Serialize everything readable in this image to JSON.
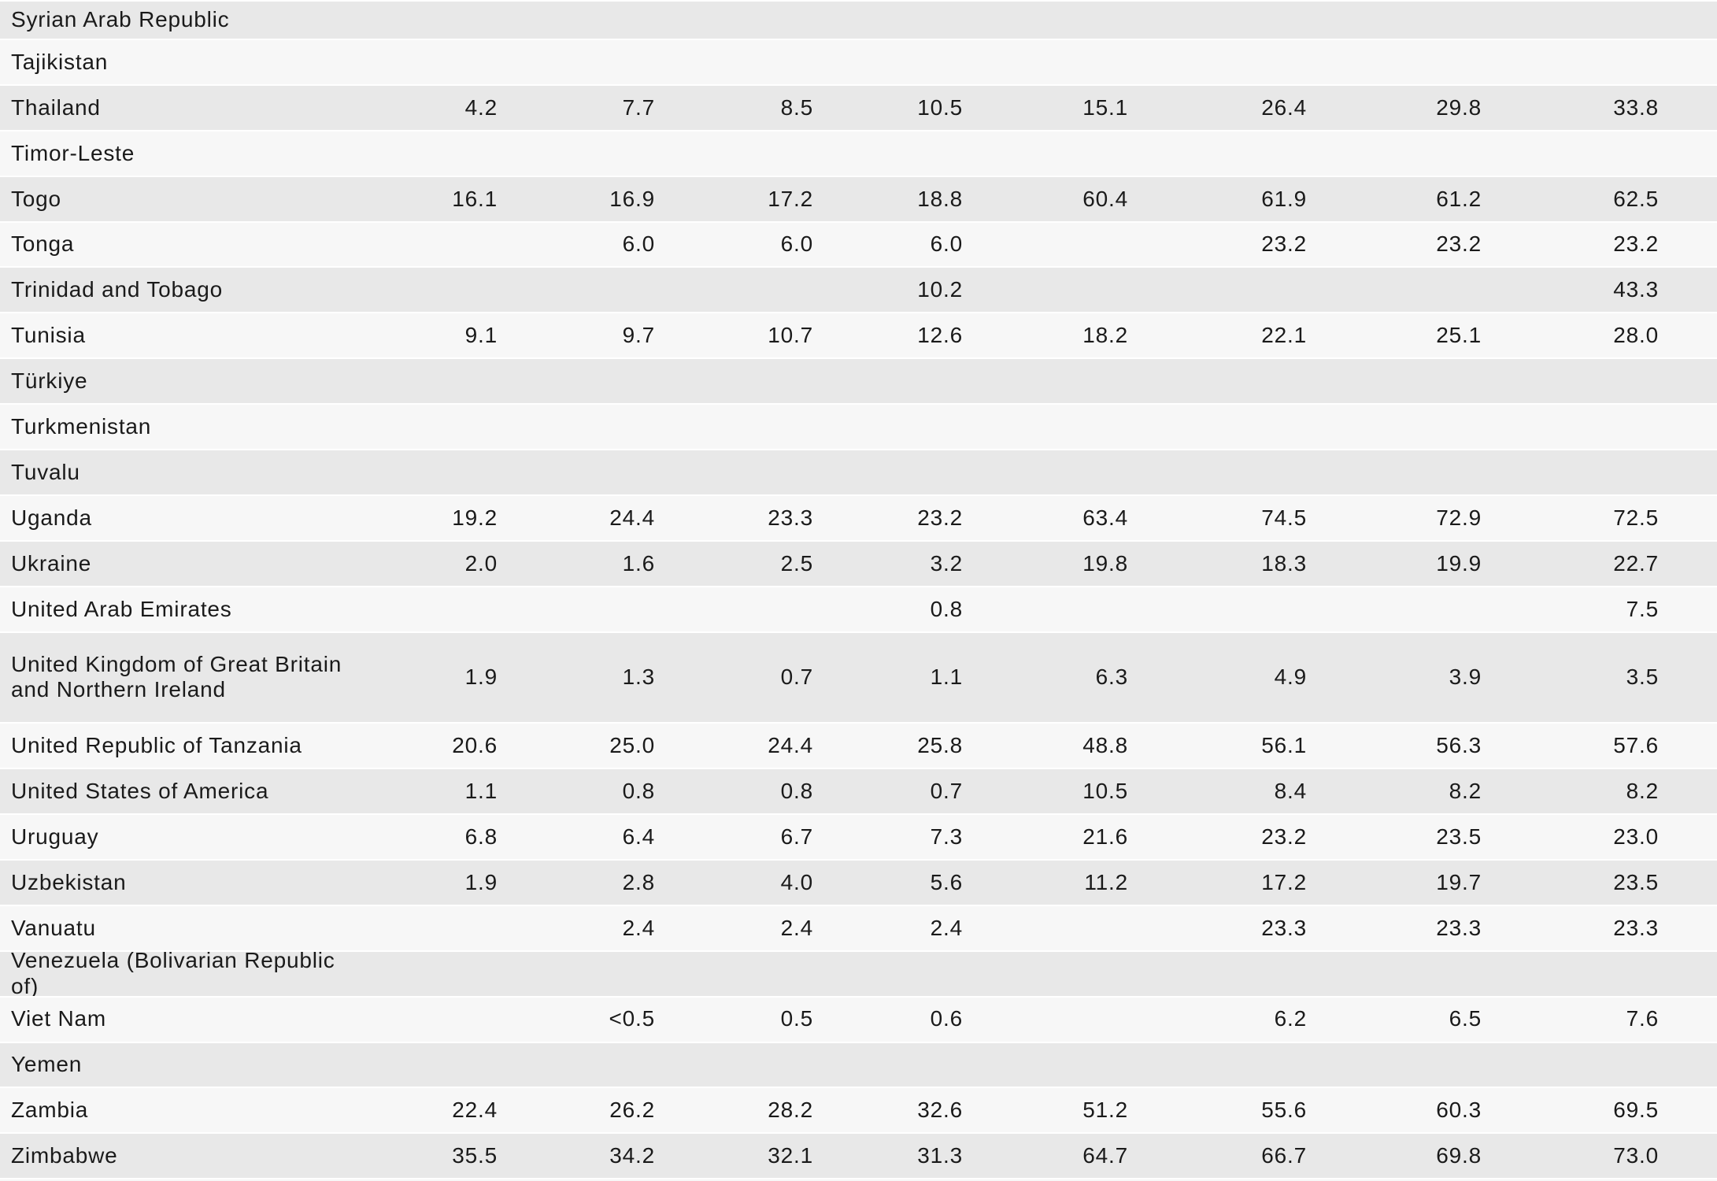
{
  "colors": {
    "row_gray": "#e8e8e8",
    "row_light": "#f7f7f7",
    "separator": "#ffffff",
    "text": "#1a1a1a"
  },
  "table": {
    "value_columns": 8,
    "rows": [
      {
        "country": "Syrian Arab Republic",
        "values": [
          "",
          "",
          "",
          "",
          "",
          "",
          "",
          ""
        ]
      },
      {
        "country": "Tajikistan",
        "values": [
          "",
          "",
          "",
          "",
          "",
          "",
          "",
          ""
        ]
      },
      {
        "country": "Thailand",
        "values": [
          "4.2",
          "7.7",
          "8.5",
          "10.5",
          "15.1",
          "26.4",
          "29.8",
          "33.8"
        ]
      },
      {
        "country": "Timor-Leste",
        "values": [
          "",
          "",
          "",
          "",
          "",
          "",
          "",
          ""
        ]
      },
      {
        "country": "Togo",
        "values": [
          "16.1",
          "16.9",
          "17.2",
          "18.8",
          "60.4",
          "61.9",
          "61.2",
          "62.5"
        ]
      },
      {
        "country": "Tonga",
        "values": [
          "",
          "6.0",
          "6.0",
          "6.0",
          "",
          "23.2",
          "23.2",
          "23.2"
        ]
      },
      {
        "country": "Trinidad and Tobago",
        "values": [
          "",
          "",
          "",
          "10.2",
          "",
          "",
          "",
          "43.3"
        ]
      },
      {
        "country": "Tunisia",
        "values": [
          "9.1",
          "9.7",
          "10.7",
          "12.6",
          "18.2",
          "22.1",
          "25.1",
          "28.0"
        ]
      },
      {
        "country": "Türkiye",
        "values": [
          "",
          "",
          "",
          "",
          "",
          "",
          "",
          ""
        ]
      },
      {
        "country": "Turkmenistan",
        "values": [
          "",
          "",
          "",
          "",
          "",
          "",
          "",
          ""
        ]
      },
      {
        "country": "Tuvalu",
        "values": [
          "",
          "",
          "",
          "",
          "",
          "",
          "",
          ""
        ]
      },
      {
        "country": "Uganda",
        "values": [
          "19.2",
          "24.4",
          "23.3",
          "23.2",
          "63.4",
          "74.5",
          "72.9",
          "72.5"
        ]
      },
      {
        "country": "Ukraine",
        "values": [
          "2.0",
          "1.6",
          "2.5",
          "3.2",
          "19.8",
          "18.3",
          "19.9",
          "22.7"
        ]
      },
      {
        "country": "United Arab Emirates",
        "values": [
          "",
          "",
          "",
          "0.8",
          "",
          "",
          "",
          "7.5"
        ]
      },
      {
        "country": "United Kingdom of Great Britain and Northern Ireland",
        "values": [
          "1.9",
          "1.3",
          "0.7",
          "1.1",
          "6.3",
          "4.9",
          "3.9",
          "3.5"
        ]
      },
      {
        "country": "United Republic of Tanzania",
        "values": [
          "20.6",
          "25.0",
          "24.4",
          "25.8",
          "48.8",
          "56.1",
          "56.3",
          "57.6"
        ]
      },
      {
        "country": "United States of America",
        "values": [
          "1.1",
          "0.8",
          "0.8",
          "0.7",
          "10.5",
          "8.4",
          "8.2",
          "8.2"
        ]
      },
      {
        "country": "Uruguay",
        "values": [
          "6.8",
          "6.4",
          "6.7",
          "7.3",
          "21.6",
          "23.2",
          "23.5",
          "23.0"
        ]
      },
      {
        "country": "Uzbekistan",
        "values": [
          "1.9",
          "2.8",
          "4.0",
          "5.6",
          "11.2",
          "17.2",
          "19.7",
          "23.5"
        ]
      },
      {
        "country": "Vanuatu",
        "values": [
          "",
          "2.4",
          "2.4",
          "2.4",
          "",
          "23.3",
          "23.3",
          "23.3"
        ]
      },
      {
        "country": "Venezuela (Bolivarian Republic of)",
        "values": [
          "",
          "",
          "",
          "",
          "",
          "",
          "",
          ""
        ]
      },
      {
        "country": "Viet Nam",
        "values": [
          "",
          "<0.5",
          "0.5",
          "0.6",
          "",
          "6.2",
          "6.5",
          "7.6"
        ]
      },
      {
        "country": "Yemen",
        "values": [
          "",
          "",
          "",
          "",
          "",
          "",
          "",
          ""
        ]
      },
      {
        "country": "Zambia",
        "values": [
          "22.4",
          "26.2",
          "28.2",
          "32.6",
          "51.2",
          "55.6",
          "60.3",
          "69.5"
        ]
      },
      {
        "country": "Zimbabwe",
        "values": [
          "35.5",
          "34.2",
          "32.1",
          "31.3",
          "64.7",
          "66.7",
          "69.8",
          "73.0"
        ]
      }
    ]
  }
}
